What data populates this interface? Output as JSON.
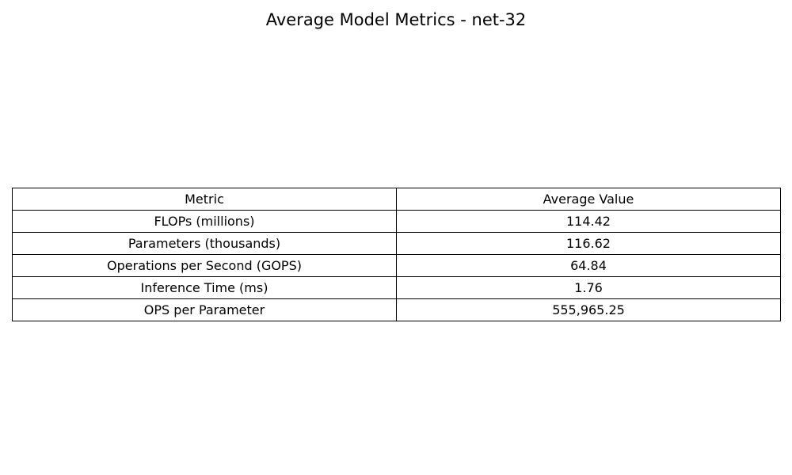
{
  "title": "Average Model Metrics - net-32",
  "chart_data": {
    "type": "table",
    "title": "Average Model Metrics - net-32",
    "columns": [
      "Metric",
      "Average Value"
    ],
    "rows": [
      [
        "FLOPs (millions)",
        "114.42"
      ],
      [
        "Parameters (thousands)",
        "116.62"
      ],
      [
        "Operations per Second (GOPS)",
        "64.84"
      ],
      [
        "Inference Time (ms)",
        "1.76"
      ],
      [
        "OPS per Parameter",
        "555,965.25"
      ]
    ]
  }
}
